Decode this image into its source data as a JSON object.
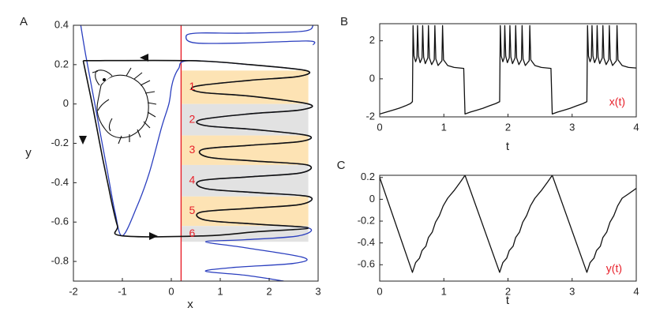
{
  "chart_data": [
    {
      "type": "line",
      "panel": "A",
      "xlabel": "x",
      "ylabel": "y",
      "curve": "smooth",
      "xlim": [
        -2,
        3
      ],
      "ylim": [
        -0.9,
        0.4
      ],
      "xticks": [
        -2,
        -1,
        0,
        1,
        2,
        3
      ],
      "yticks": [
        0.4,
        0.2,
        0,
        -0.2,
        -0.4,
        -0.6,
        -0.8
      ],
      "vline": 0.2,
      "vline_color": "#e8202a",
      "band_xlim": [
        0.2,
        2.8
      ],
      "bands": [
        {
          "label": "1",
          "ymax": 0.17,
          "ymin": 0.0,
          "color": "#fde3b4"
        },
        {
          "label": "2",
          "ymax": 0.0,
          "ymin": -0.16,
          "color": "#e2e2e2"
        },
        {
          "label": "3",
          "ymax": -0.16,
          "ymin": -0.31,
          "color": "#fde3b4"
        },
        {
          "label": "4",
          "ymax": -0.31,
          "ymin": -0.47,
          "color": "#e2e2e2"
        },
        {
          "label": "5",
          "ymax": -0.47,
          "ymin": -0.62,
          "color": "#fde3b4"
        },
        {
          "label": "6",
          "ymax": -0.62,
          "ymin": -0.7,
          "color": "#e2e2e2"
        }
      ],
      "band_label_color": "#e8202a",
      "series": [
        {
          "color": "#2b3fbf",
          "width": 1.3,
          "x": [
            -1.85,
            -1.75,
            -1.6,
            -1.45,
            -1.3,
            -1.15,
            -1.0,
            -0.7,
            -0.45,
            -0.2,
            -0.05,
            0.0,
            0.05,
            0.15,
            0.35,
            1.6,
            2.75,
            2.6,
            1.6,
            0.5,
            0.6,
            1.6,
            2.8,
            2.65,
            1.6,
            0.6,
            0.7,
            1.7,
            2.78,
            2.65,
            1.6,
            0.65,
            0.75,
            1.7,
            2.78,
            2.65,
            1.6,
            0.6,
            0.7,
            1.7,
            2.8,
            2.65,
            1.6,
            0.6,
            0.7,
            1.7,
            2.8,
            2.6,
            1.5,
            0.7,
            1.5,
            2.7,
            2.5,
            1.3,
            0.7,
            1.5,
            2.3,
            null,
            2.9,
            2.7,
            1.5,
            0.5,
            0.3,
            0.5,
            1.5,
            2.8,
            2.9
          ],
          "values": [
            0.4,
            0.25,
            0.05,
            -0.15,
            -0.35,
            -0.55,
            -0.67,
            -0.52,
            -0.35,
            -0.12,
            0.0,
            0.08,
            0.13,
            0.18,
            0.22,
            0.2,
            0.17,
            0.14,
            0.12,
            0.09,
            0.06,
            0.04,
            0.0,
            -0.03,
            -0.05,
            -0.08,
            -0.11,
            -0.13,
            -0.16,
            -0.19,
            -0.21,
            -0.23,
            -0.27,
            -0.29,
            -0.31,
            -0.35,
            -0.37,
            -0.39,
            -0.43,
            -0.45,
            -0.47,
            -0.51,
            -0.53,
            -0.55,
            -0.59,
            -0.61,
            -0.63,
            -0.67,
            -0.69,
            -0.7,
            -0.73,
            -0.78,
            -0.81,
            -0.83,
            -0.85,
            -0.87,
            -0.9,
            null,
            0.4,
            0.37,
            0.36,
            0.36,
            0.34,
            0.31,
            0.31,
            0.32,
            0.3
          ]
        },
        {
          "color": "#111111",
          "width": 1.6,
          "x": [
            -1.8,
            -1.7,
            -1.6,
            -1.5,
            -1.4,
            -1.3,
            -1.2,
            -1.1,
            -1.0,
            0.7,
            1.7,
            2.8,
            1.7,
            0.7,
            0.6,
            1.6,
            2.65,
            2.8,
            1.7,
            0.7,
            0.6,
            1.6,
            2.65,
            2.78,
            1.7,
            0.75,
            0.65,
            1.6,
            2.65,
            2.78,
            1.7,
            0.7,
            0.6,
            1.6,
            2.65,
            2.8,
            1.6,
            0.6,
            0.5,
            1.6,
            2.6,
            2.75,
            1.6,
            0.4,
            -1.8
          ],
          "values": [
            0.22,
            0.1,
            -0.02,
            -0.15,
            -0.28,
            -0.4,
            -0.52,
            -0.62,
            -0.67,
            -0.67,
            -0.65,
            -0.63,
            -0.61,
            -0.59,
            -0.55,
            -0.53,
            -0.51,
            -0.47,
            -0.45,
            -0.43,
            -0.39,
            -0.37,
            -0.35,
            -0.31,
            -0.29,
            -0.27,
            -0.23,
            -0.21,
            -0.19,
            -0.16,
            -0.13,
            -0.11,
            -0.08,
            -0.05,
            -0.03,
            0.0,
            0.04,
            0.06,
            0.09,
            0.12,
            0.14,
            0.17,
            0.2,
            0.22,
            0.22
          ]
        }
      ]
    },
    {
      "type": "line",
      "panel": "B",
      "xlabel": "t",
      "curve": "linear",
      "annotation": "x(t)",
      "annotation_color": "#e8202a",
      "xlim": [
        0,
        4
      ],
      "ylim": [
        -2,
        2.9
      ],
      "xticks": [
        0,
        1,
        2,
        3,
        4
      ],
      "yticks": [
        -2,
        0,
        2
      ],
      "series": [
        {
          "color": "#111111",
          "width": 1.3,
          "x": [
            0,
            0.1,
            0.2,
            0.3,
            0.4,
            0.48,
            0.51,
            0.52,
            0.535,
            0.56,
            0.58,
            0.59,
            0.605,
            0.63,
            0.66,
            0.67,
            0.685,
            0.71,
            0.75,
            0.76,
            0.775,
            0.81,
            0.85,
            0.86,
            0.875,
            0.91,
            0.97,
            0.98,
            0.995,
            1.06,
            1.16,
            1.31,
            1.33,
            1.41,
            1.51,
            1.61,
            1.71,
            1.81,
            1.87,
            1.88,
            1.895,
            1.92,
            1.94,
            1.95,
            1.965,
            1.99,
            2.02,
            2.03,
            2.045,
            2.07,
            2.11,
            2.12,
            2.135,
            2.17,
            2.21,
            2.22,
            2.235,
            2.27,
            2.33,
            2.34,
            2.355,
            2.42,
            2.52,
            2.67,
            2.69,
            2.77,
            2.87,
            2.97,
            3.07,
            3.17,
            3.23,
            3.24,
            3.255,
            3.28,
            3.3,
            3.31,
            3.325,
            3.35,
            3.38,
            3.39,
            3.405,
            3.43,
            3.47,
            3.48,
            3.495,
            3.53,
            3.57,
            3.58,
            3.595,
            3.63,
            3.69,
            3.7,
            3.715,
            3.78,
            3.88,
            4.0
          ],
          "values": [
            -1.85,
            -1.75,
            -1.65,
            -1.55,
            -1.42,
            -1.3,
            -1.2,
            2.8,
            1.2,
            0.9,
            1.1,
            2.8,
            1.2,
            0.85,
            1.1,
            2.8,
            1.15,
            0.8,
            1.1,
            2.8,
            1.1,
            0.75,
            1.0,
            2.8,
            1.05,
            0.7,
            0.95,
            2.8,
            1.0,
            0.7,
            0.6,
            0.55,
            -1.85,
            -1.75,
            -1.65,
            -1.55,
            -1.42,
            -1.3,
            -1.2,
            2.8,
            1.2,
            0.9,
            1.1,
            2.8,
            1.2,
            0.85,
            1.1,
            2.8,
            1.15,
            0.8,
            1.1,
            2.8,
            1.1,
            0.75,
            1.0,
            2.8,
            1.05,
            0.7,
            0.95,
            2.8,
            1.0,
            0.7,
            0.6,
            0.55,
            -1.85,
            -1.75,
            -1.65,
            -1.55,
            -1.42,
            -1.3,
            -1.2,
            2.8,
            1.2,
            0.9,
            1.1,
            2.8,
            1.2,
            0.85,
            1.1,
            2.8,
            1.15,
            0.8,
            1.1,
            2.8,
            1.1,
            0.75,
            1.0,
            2.8,
            1.05,
            0.7,
            0.95,
            2.8,
            1.0,
            0.7,
            0.6,
            0.57
          ]
        }
      ]
    },
    {
      "type": "line",
      "panel": "C",
      "xlabel": "t",
      "curve": "linear",
      "annotation": "y(t)",
      "annotation_color": "#e8202a",
      "xlim": [
        0,
        4
      ],
      "ylim": [
        -0.75,
        0.22
      ],
      "xticks": [
        0,
        1,
        2,
        3,
        4
      ],
      "yticks": [
        0.2,
        0,
        -0.2,
        -0.4,
        -0.6
      ],
      "series": [
        {
          "color": "#111111",
          "width": 1.3,
          "x": [
            0,
            0.51,
            0.56,
            0.62,
            0.66,
            0.72,
            0.76,
            0.82,
            0.87,
            0.93,
            0.99,
            1.06,
            1.16,
            1.26,
            1.33,
            1.87,
            1.92,
            1.98,
            2.02,
            2.08,
            2.12,
            2.18,
            2.23,
            2.29,
            2.35,
            2.42,
            2.52,
            2.62,
            2.69,
            3.23,
            3.28,
            3.34,
            3.38,
            3.44,
            3.48,
            3.54,
            3.59,
            3.65,
            3.71,
            3.78,
            3.88,
            4.0
          ],
          "values": [
            0.2,
            -0.67,
            -0.58,
            -0.54,
            -0.47,
            -0.43,
            -0.35,
            -0.3,
            -0.21,
            -0.15,
            -0.06,
            0.01,
            0.08,
            0.16,
            0.22,
            -0.67,
            -0.58,
            -0.54,
            -0.47,
            -0.43,
            -0.35,
            -0.3,
            -0.21,
            -0.15,
            -0.06,
            0.01,
            0.08,
            0.16,
            0.22,
            -0.67,
            -0.58,
            -0.54,
            -0.47,
            -0.43,
            -0.35,
            -0.3,
            -0.21,
            -0.15,
            -0.06,
            0.01,
            0.05,
            0.1
          ]
        }
      ]
    }
  ]
}
